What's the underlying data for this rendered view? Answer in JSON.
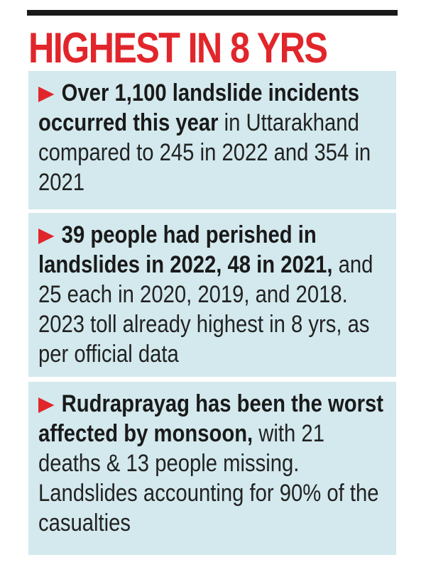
{
  "headline": "HIGHEST IN 8 YRS",
  "colors": {
    "headline": "#e1262b",
    "arrow": "#e1262b",
    "panel_background": "#d3e9ee",
    "rule": "#1a1a1a"
  },
  "bullets": [
    {
      "icon": "right-arrow-icon",
      "bold": "Over 1,100 landslide incidents occurred this year",
      "regular": "in Uttarakhand compared to 245 in 2022 and 354 in 2021"
    },
    {
      "icon": "right-arrow-icon",
      "bold": "39 people had perished in landslides in 2022, 48 in 2021,",
      "regular": "and 25 each in 2020, 2019, and 2018. 2023 toll already highest in 8 yrs, as per official data"
    },
    {
      "icon": "right-arrow-icon",
      "bold": "Rudraprayag has been the worst affected by monsoon,",
      "regular": "with 21 deaths & 13 people missing. Landslides accounting for 90% of the casualties"
    }
  ]
}
